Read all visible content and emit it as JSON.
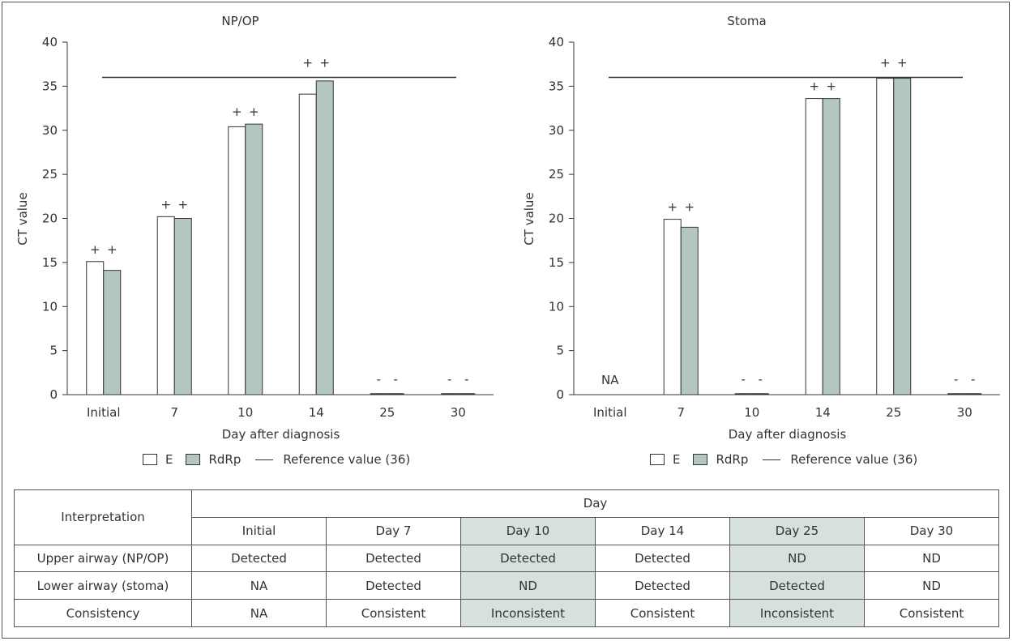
{
  "charts": [
    {
      "title": "NP/OP",
      "ylabel": "CT value",
      "xlabel": "Day after diagnosis",
      "categories": [
        "Initial",
        "7",
        "10",
        "14",
        "25",
        "30"
      ],
      "yticks": [
        "0",
        "5",
        "10",
        "15",
        "20",
        "25",
        "30",
        "35",
        "40"
      ],
      "E": [
        15.1,
        20.2,
        30.4,
        34.1,
        0,
        0
      ],
      "RdRp": [
        14.1,
        20.0,
        30.7,
        35.6,
        0,
        0
      ],
      "marks": [
        [
          "+",
          "+"
        ],
        [
          "+",
          "+"
        ],
        [
          "+",
          "+"
        ],
        [
          "+",
          "+"
        ],
        [
          "-",
          "-"
        ],
        [
          "-",
          "-"
        ]
      ],
      "na_label": ""
    },
    {
      "title": "Stoma",
      "ylabel": "CT value",
      "xlabel": "Day after diagnosis",
      "categories": [
        "Initial",
        "7",
        "10",
        "14",
        "25",
        "30"
      ],
      "yticks": [
        "0",
        "5",
        "10",
        "15",
        "20",
        "25",
        "30",
        "35",
        "40"
      ],
      "E": [
        null,
        19.9,
        0,
        33.6,
        35.9,
        0
      ],
      "RdRp": [
        null,
        19.0,
        0,
        33.6,
        35.9,
        0
      ],
      "marks": [
        [
          "",
          ""
        ],
        [
          "+",
          "+"
        ],
        [
          "-",
          "-"
        ],
        [
          "+",
          "+"
        ],
        [
          "+",
          "+"
        ],
        [
          "-",
          "-"
        ]
      ],
      "na_label": "NA"
    }
  ],
  "legend": {
    "e": "E",
    "rdrp": "RdRp",
    "ref": "Reference value (36)"
  },
  "table": {
    "corner": "Interpretation",
    "group": "Day",
    "days": [
      "Initial",
      "Day 7",
      "Day 10",
      "Day 14",
      "Day 25",
      "Day 30"
    ],
    "rows": [
      {
        "label": "Upper airway (NP/OP)",
        "cells": [
          "Detected",
          "Detected",
          "Detected",
          "Detected",
          "ND",
          "ND"
        ]
      },
      {
        "label": "Lower airway (stoma)",
        "cells": [
          "NA",
          "Detected",
          "ND",
          "Detected",
          "Detected",
          "ND"
        ]
      },
      {
        "label": "Consistency",
        "cells": [
          "NA",
          "Consistent",
          "Inconsistent",
          "Consistent",
          "Inconsistent",
          "Consistent"
        ]
      }
    ]
  },
  "chart_data": [
    {
      "type": "bar",
      "title": "NP/OP",
      "categories": [
        "Initial",
        "7",
        "10",
        "14",
        "25",
        "30"
      ],
      "series": [
        {
          "name": "E",
          "values": [
            15.1,
            20.2,
            30.4,
            34.1,
            0,
            0
          ]
        },
        {
          "name": "RdRp",
          "values": [
            14.1,
            20.0,
            30.7,
            35.6,
            0,
            0
          ]
        }
      ],
      "reference_line": {
        "name": "Reference value (36)",
        "value": 36
      },
      "annotations": [
        "+ +",
        "+ +",
        "+ +",
        "+ +",
        "- -",
        "- -"
      ],
      "xlabel": "Day after diagnosis",
      "ylabel": "CT value",
      "ylim": [
        0,
        40
      ],
      "legend": "bottom"
    },
    {
      "type": "bar",
      "title": "Stoma",
      "categories": [
        "Initial",
        "7",
        "10",
        "14",
        "25",
        "30"
      ],
      "series": [
        {
          "name": "E",
          "values": [
            null,
            19.9,
            0,
            33.6,
            35.9,
            0
          ]
        },
        {
          "name": "RdRp",
          "values": [
            null,
            19.0,
            0,
            33.6,
            35.9,
            0
          ]
        }
      ],
      "reference_line": {
        "name": "Reference value (36)",
        "value": 36
      },
      "annotations": [
        "NA",
        "+ +",
        "- -",
        "+ +",
        "+ +",
        "- -"
      ],
      "xlabel": "Day after diagnosis",
      "ylabel": "CT value",
      "ylim": [
        0,
        40
      ],
      "legend": "bottom"
    }
  ],
  "colors": {
    "e_fill": "#ffffff",
    "rdrp_fill": "#b3c7bf",
    "highlight": "#d6e0dc",
    "stroke": "#333333"
  }
}
